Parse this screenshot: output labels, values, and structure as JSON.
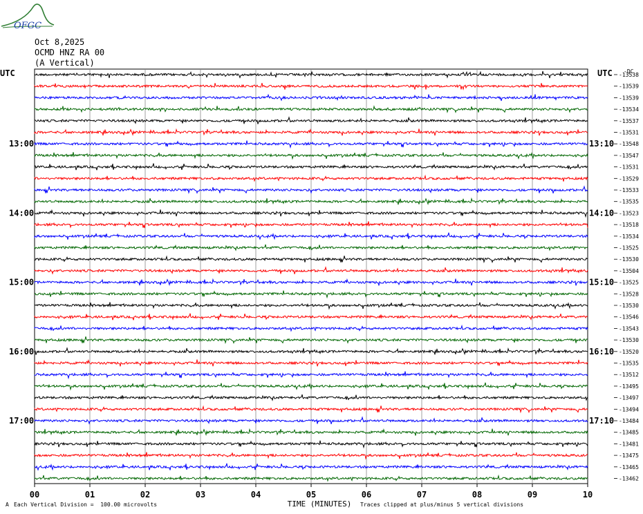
{
  "header": {
    "date": "Oct 8,2025",
    "station": "OCMD HNZ RA 00",
    "component": "(A Vertical)",
    "logo_text": "OFGC"
  },
  "footer": {
    "scale": "Each Vertical Division =  100.00 microvolts",
    "xlabel": "TIME (MINUTES)",
    "clip_note": "Traces clipped at plus/minus 5 vertical divisions",
    "corner_mark": "A"
  },
  "colors": [
    "#000000",
    "#ff0000",
    "#0000ff",
    "#006600"
  ],
  "chart_data": {
    "type": "line",
    "title": "",
    "xlabel": "TIME (MINUTES)",
    "xlim": [
      0,
      10
    ],
    "x_ticks": [
      "00",
      "01",
      "02",
      "03",
      "04",
      "05",
      "06",
      "07",
      "08",
      "09",
      "10"
    ],
    "left_axis_label": "UTC",
    "right_axis_label": "UTC",
    "left_time_labels": [
      {
        "row": 6,
        "label": "13:00"
      },
      {
        "row": 12,
        "label": "14:00"
      },
      {
        "row": 18,
        "label": "15:00"
      },
      {
        "row": 24,
        "label": "16:00"
      },
      {
        "row": 30,
        "label": "17:00"
      }
    ],
    "right_time_labels": [
      {
        "row": 6,
        "label": "13:10"
      },
      {
        "row": 12,
        "label": "14:10"
      },
      {
        "row": 18,
        "label": "15:10"
      },
      {
        "row": 24,
        "label": "16:10"
      },
      {
        "row": 30,
        "label": "17:10"
      }
    ],
    "trace_count": 36,
    "trace_values": [
      "-13538",
      "-13539",
      "-13539",
      "-13534",
      "-13537",
      "-13531",
      "-13548",
      "-13547",
      "-13531",
      "-13529",
      "-13533",
      "-13535",
      "-13523",
      "-13518",
      "-13534",
      "-13525",
      "-13530",
      "-13504",
      "-13525",
      "-13528",
      "-13530",
      "-13546",
      "-13543",
      "-13530",
      "-13520",
      "-13535",
      "-13512",
      "-13495",
      "-13497",
      "-13494",
      "-13484",
      "-13485",
      "-13481",
      "-13475",
      "-13465",
      "-13462"
    ],
    "top_right_tag": "-DC"
  }
}
